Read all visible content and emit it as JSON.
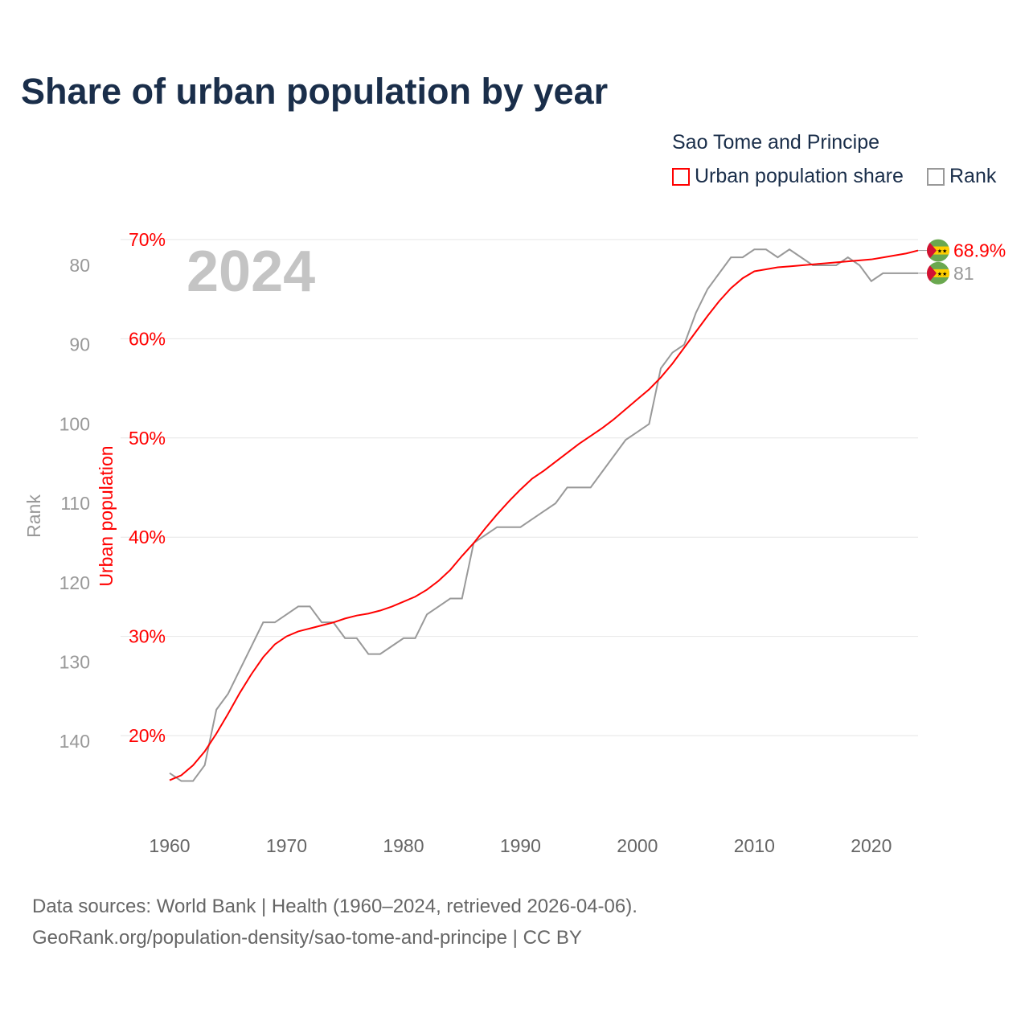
{
  "chart_data": {
    "type": "line",
    "title": "Share of urban population by year",
    "legend_title": "Sao Tome and Principe",
    "legend": [
      "Urban population share",
      "Rank"
    ],
    "legend_placement": "top-right",
    "year_label": "2024",
    "xlabel": "",
    "ylabel_left": "Rank",
    "ylabel_right": "Urban population",
    "x_ticks": [
      "1960",
      "1970",
      "1980",
      "1990",
      "2000",
      "2010",
      "2020"
    ],
    "urban_ticks": [
      "20%",
      "30%",
      "40%",
      "50%",
      "60%",
      "70%"
    ],
    "rank_ticks": [
      "80",
      "90",
      "100",
      "110",
      "120",
      "130",
      "140"
    ],
    "xlim": [
      1960,
      2024
    ],
    "urban_ylim": [
      20,
      70
    ],
    "rank_ylim": [
      80,
      140
    ],
    "colors": {
      "urban": "#ff0000",
      "rank": "#999999"
    },
    "x": [
      1960,
      1961,
      1962,
      1963,
      1964,
      1965,
      1966,
      1967,
      1968,
      1969,
      1970,
      1971,
      1972,
      1973,
      1974,
      1975,
      1976,
      1977,
      1978,
      1979,
      1980,
      1981,
      1982,
      1983,
      1984,
      1985,
      1986,
      1987,
      1988,
      1989,
      1990,
      1991,
      1992,
      1993,
      1994,
      1995,
      1996,
      1997,
      1998,
      1999,
      2000,
      2001,
      2002,
      2003,
      2004,
      2005,
      2006,
      2007,
      2008,
      2009,
      2010,
      2011,
      2012,
      2013,
      2014,
      2015,
      2016,
      2017,
      2018,
      2019,
      2020,
      2021,
      2022,
      2023,
      2024
    ],
    "series": [
      {
        "name": "Urban population share",
        "axis": "urban",
        "values": [
          15.5,
          16.0,
          17.0,
          18.4,
          20.2,
          22.2,
          24.3,
          26.2,
          27.9,
          29.2,
          30.0,
          30.5,
          30.8,
          31.1,
          31.4,
          31.8,
          32.1,
          32.3,
          32.6,
          33.0,
          33.5,
          34.0,
          34.7,
          35.6,
          36.7,
          38.1,
          39.4,
          40.9,
          42.3,
          43.6,
          44.8,
          45.9,
          46.7,
          47.6,
          48.5,
          49.4,
          50.2,
          51.0,
          51.9,
          52.9,
          53.9,
          54.9,
          56.1,
          57.5,
          59.1,
          60.7,
          62.3,
          63.8,
          65.1,
          66.1,
          66.8,
          67.0,
          67.2,
          67.3,
          67.4,
          67.5,
          67.6,
          67.7,
          67.8,
          67.9,
          68.0,
          68.2,
          68.4,
          68.6,
          68.9
        ]
      },
      {
        "name": "Rank",
        "axis": "rank",
        "values": [
          144,
          145,
          145,
          143,
          136,
          134,
          131,
          128,
          125,
          125,
          124,
          123,
          123,
          125,
          125,
          127,
          127,
          129,
          129,
          128,
          127,
          127,
          124,
          123,
          122,
          122,
          115,
          114,
          113,
          113,
          113,
          112,
          111,
          110,
          108,
          108,
          108,
          106,
          104,
          102,
          101,
          100,
          93,
          91,
          90,
          86,
          83,
          81,
          79,
          79,
          78,
          78,
          79,
          78,
          79,
          80,
          80,
          80,
          79,
          80,
          82,
          81,
          81,
          81,
          81
        ]
      }
    ],
    "end_labels": {
      "urban": "68.9%",
      "rank": "81"
    }
  },
  "footer": {
    "line1": "Data sources: World Bank | Health (1960–2024, retrieved 2026-04-06).",
    "line2": "GeoRank.org/population-density/sao-tome-and-principe | CC BY"
  }
}
